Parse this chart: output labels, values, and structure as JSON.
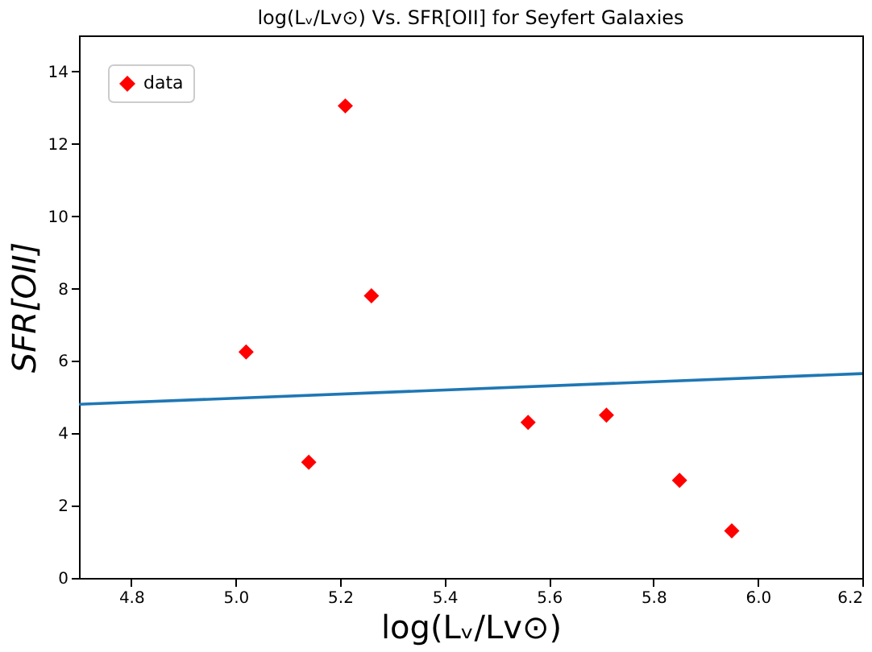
{
  "chart_data": {
    "type": "scatter",
    "title": "log(Lᵥ/Lv⊙) Vs. SFR[OII] for Seyfert Galaxies",
    "xlabel": "log(Lᵥ/Lv⊙)",
    "ylabel": "SFR[OII]",
    "series": [
      {
        "name": "data",
        "color": "#ff0000",
        "marker": "diamond",
        "x": [
          5.02,
          5.14,
          5.21,
          5.26,
          5.56,
          5.71,
          5.85,
          5.95
        ],
        "values": [
          6.25,
          3.2,
          13.05,
          7.8,
          4.3,
          4.5,
          2.7,
          1.3
        ]
      },
      {
        "type": "line",
        "color": "#1f77b4",
        "marker": "none",
        "x": [
          4.7,
          6.2
        ],
        "values": [
          4.8,
          5.65
        ]
      }
    ],
    "xlim": [
      4.7,
      6.2
    ],
    "xticks": [
      4.8,
      {
        "value": 5,
        "label": "5.0"
      },
      5.2,
      5.4,
      5.6,
      5.8,
      {
        "value": 6,
        "label": "6.0"
      },
      6.2
    ],
    "ylim": [
      0,
      15
    ],
    "yticks": [
      0,
      2,
      4,
      6,
      8,
      10,
      12,
      14
    ],
    "grid": false,
    "legend": "top left"
  }
}
